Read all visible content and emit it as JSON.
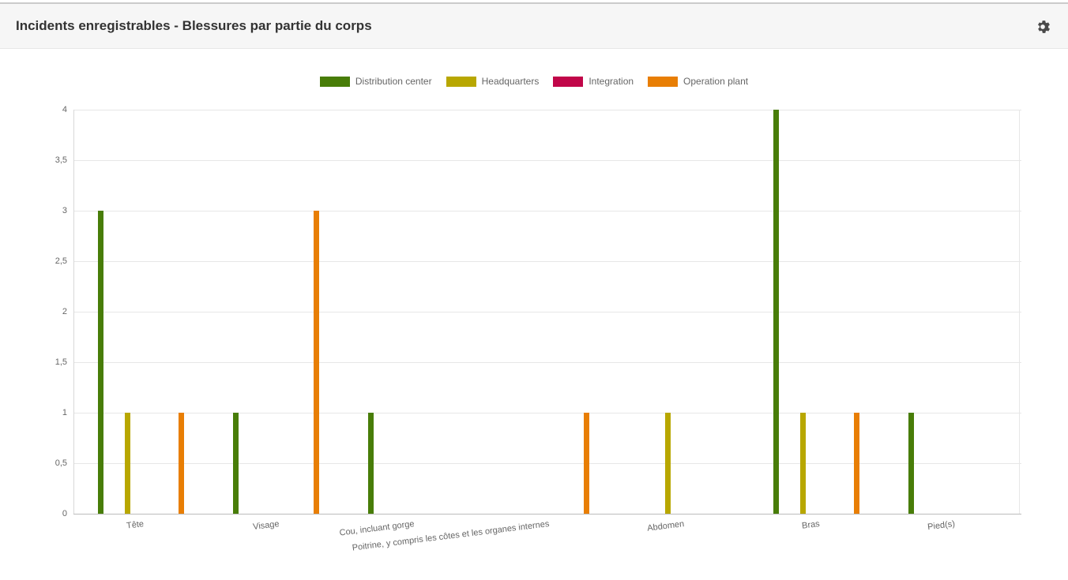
{
  "header": {
    "title": "Incidents enregistrables - Blessures par partie du corps",
    "icons": {
      "settings": "gear-icon"
    },
    "settings_icon_color": "#4a4a4a"
  },
  "chart_data": {
    "type": "bar",
    "title": "Incidents enregistrables - Blessures par partie du corps",
    "xlabel": "",
    "ylabel": "",
    "ylim": [
      0,
      4
    ],
    "grid": "horizontal",
    "legend_position": "top-center",
    "decimal_separator": ",",
    "categories": [
      "Tête",
      "Visage",
      "Cou, incluant gorge",
      "Poitrine, y compris les côtes et les organes internes",
      "Abdomen",
      "Bras",
      "Pied(s)"
    ],
    "series": [
      {
        "name": "Distribution center",
        "color": "#487d08",
        "values": [
          3,
          1,
          1,
          0,
          0,
          4,
          1
        ]
      },
      {
        "name": "Headquarters",
        "color": "#b8a700",
        "values": [
          1,
          0,
          0,
          0,
          1,
          1,
          0
        ]
      },
      {
        "name": "Integration",
        "color": "#c10649",
        "values": [
          0,
          0,
          0,
          0,
          0,
          0,
          0
        ]
      },
      {
        "name": "Operation plant",
        "color": "#e87e04",
        "values": [
          1,
          3,
          0,
          1,
          0,
          1,
          0
        ]
      }
    ],
    "y_ticks": [
      {
        "value": 0,
        "label": "0"
      },
      {
        "value": 0.5,
        "label": "0,5"
      },
      {
        "value": 1,
        "label": "1"
      },
      {
        "value": 1.5,
        "label": "1,5"
      },
      {
        "value": 2,
        "label": "2"
      },
      {
        "value": 2.5,
        "label": "2,5"
      },
      {
        "value": 3,
        "label": "3"
      },
      {
        "value": 3.5,
        "label": "3,5"
      },
      {
        "value": 4,
        "label": "4"
      }
    ]
  }
}
